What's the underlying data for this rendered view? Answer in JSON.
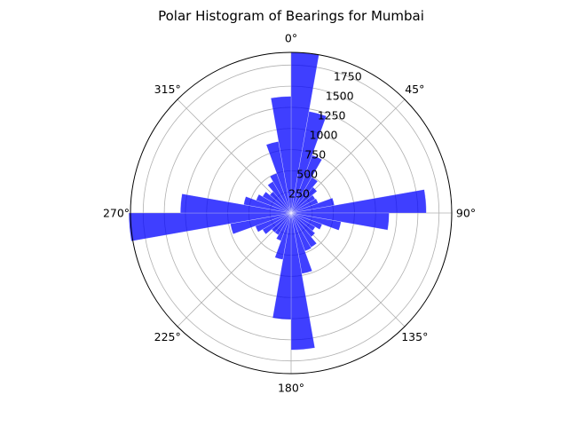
{
  "chart_data": {
    "type": "bar",
    "projection": "polar",
    "title": "Polar Histogram of Bearings for Mumbai",
    "theta_zero": "N",
    "theta_direction": "clockwise",
    "bin_width_deg": 10,
    "color": "#0000ff",
    "angle_ticks": [
      "0°",
      "45°",
      "90°",
      "135°",
      "180°",
      "225°",
      "270°",
      "315°"
    ],
    "radial_ticks": [
      "250",
      "500",
      "750",
      "1000",
      "1250",
      "1500",
      "1750"
    ],
    "rlim": [
      0,
      1900
    ],
    "grid": true,
    "series": [
      {
        "bin_centers_deg": [
          5,
          15,
          25,
          35,
          45,
          55,
          65,
          75,
          85,
          95,
          105,
          115,
          125,
          135,
          145,
          155,
          165,
          175,
          185,
          195,
          205,
          215,
          225,
          235,
          245,
          255,
          265,
          275,
          285,
          295,
          305,
          315,
          325,
          335,
          345,
          355
        ],
        "values": [
          1900,
          1220,
          730,
          490,
          400,
          330,
          340,
          520,
          1600,
          1160,
          600,
          390,
          330,
          370,
          470,
          480,
          730,
          1620,
          1260,
          560,
          350,
          300,
          300,
          390,
          450,
          730,
          1920,
          1310,
          570,
          440,
          390,
          330,
          430,
          500,
          860,
          1380
        ]
      }
    ]
  }
}
